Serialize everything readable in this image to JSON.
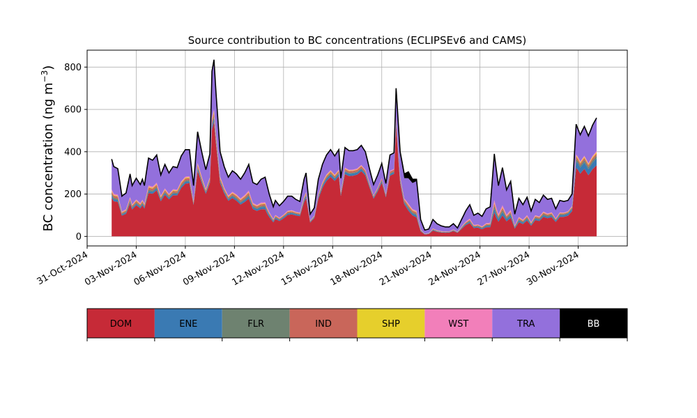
{
  "chart_data": {
    "type": "area",
    "title": "Source contribution to BC concentrations (ECLIPSEv6 and CAMS)",
    "ylabel_main": "BC concentration (ng m",
    "ylabel_sup": "−3",
    "ylabel_end": ")",
    "xlabel": "",
    "ylim": [
      -45,
      880
    ],
    "yticks": [
      0,
      200,
      400,
      600,
      800
    ],
    "xlim": [
      "2024-10-31",
      "2024-12-03"
    ],
    "xticks": [
      "31-Oct-2024",
      "03-Nov-2024",
      "06-Nov-2024",
      "09-Nov-2024",
      "12-Nov-2024",
      "15-Nov-2024",
      "18-Nov-2024",
      "21-Nov-2024",
      "24-Nov-2024",
      "27-Nov-2024",
      "30-Nov-2024"
    ],
    "grid": true,
    "stacked": true,
    "x_start": "2024-11-01 12:00",
    "x_step_hours": 3,
    "series": [
      {
        "name": "DOM",
        "color": "#c62a37"
      },
      {
        "name": "ENE",
        "color": "#3a7ab3"
      },
      {
        "name": "FLR",
        "color": "#6e8270"
      },
      {
        "name": "IND",
        "color": "#c9665a"
      },
      {
        "name": "SHP",
        "color": "#e6cf2c"
      },
      {
        "name": "WST",
        "color": "#f27fba"
      },
      {
        "name": "TRA",
        "color": "#9370dc"
      },
      {
        "name": "BB",
        "color": "#000000"
      }
    ],
    "total_keyframes": [
      [
        "2024-11-01 12:00",
        365
      ],
      [
        "2024-11-01 15:00",
        330
      ],
      [
        "2024-11-01 21:00",
        320
      ],
      [
        "2024-11-02 03:00",
        190
      ],
      [
        "2024-11-02 09:00",
        205
      ],
      [
        "2024-11-02 15:00",
        295
      ],
      [
        "2024-11-02 18:00",
        240
      ],
      [
        "2024-11-03 00:00",
        275
      ],
      [
        "2024-11-03 06:00",
        245
      ],
      [
        "2024-11-03 09:00",
        270
      ],
      [
        "2024-11-03 12:00",
        240
      ],
      [
        "2024-11-03 18:00",
        370
      ],
      [
        "2024-11-04 00:00",
        360
      ],
      [
        "2024-11-04 06:00",
        385
      ],
      [
        "2024-11-04 12:00",
        290
      ],
      [
        "2024-11-04 18:00",
        340
      ],
      [
        "2024-11-05 00:00",
        300
      ],
      [
        "2024-11-05 06:00",
        330
      ],
      [
        "2024-11-05 12:00",
        325
      ],
      [
        "2024-11-05 18:00",
        380
      ],
      [
        "2024-11-06 00:00",
        410
      ],
      [
        "2024-11-06 06:00",
        410
      ],
      [
        "2024-11-06 12:00",
        240
      ],
      [
        "2024-11-06 18:00",
        495
      ],
      [
        "2024-11-07 00:00",
        400
      ],
      [
        "2024-11-07 06:00",
        315
      ],
      [
        "2024-11-07 12:00",
        390
      ],
      [
        "2024-11-07 15:00",
        780
      ],
      [
        "2024-11-07 18:00",
        835
      ],
      [
        "2024-11-07 21:00",
        680
      ],
      [
        "2024-11-08 03:00",
        400
      ],
      [
        "2024-11-08 09:00",
        330
      ],
      [
        "2024-11-08 15:00",
        280
      ],
      [
        "2024-11-08 21:00",
        310
      ],
      [
        "2024-11-09 03:00",
        295
      ],
      [
        "2024-11-09 09:00",
        270
      ],
      [
        "2024-11-09 15:00",
        300
      ],
      [
        "2024-11-09 21:00",
        340
      ],
      [
        "2024-11-10 03:00",
        255
      ],
      [
        "2024-11-10 09:00",
        245
      ],
      [
        "2024-11-10 15:00",
        270
      ],
      [
        "2024-11-10 21:00",
        280
      ],
      [
        "2024-11-11 03:00",
        200
      ],
      [
        "2024-11-11 09:00",
        140
      ],
      [
        "2024-11-11 12:00",
        170
      ],
      [
        "2024-11-11 18:00",
        145
      ],
      [
        "2024-11-12 00:00",
        165
      ],
      [
        "2024-11-12 06:00",
        190
      ],
      [
        "2024-11-12 12:00",
        190
      ],
      [
        "2024-11-12 18:00",
        175
      ],
      [
        "2024-11-13 00:00",
        165
      ],
      [
        "2024-11-13 06:00",
        270
      ],
      [
        "2024-11-13 09:00",
        300
      ],
      [
        "2024-11-13 15:00",
        105
      ],
      [
        "2024-11-13 21:00",
        135
      ],
      [
        "2024-11-14 03:00",
        270
      ],
      [
        "2024-11-14 09:00",
        340
      ],
      [
        "2024-11-14 15:00",
        385
      ],
      [
        "2024-11-14 21:00",
        410
      ],
      [
        "2024-11-15 03:00",
        380
      ],
      [
        "2024-11-15 09:00",
        410
      ],
      [
        "2024-11-15 12:00",
        275
      ],
      [
        "2024-11-15 18:00",
        420
      ],
      [
        "2024-11-16 00:00",
        405
      ],
      [
        "2024-11-16 06:00",
        405
      ],
      [
        "2024-11-16 12:00",
        410
      ],
      [
        "2024-11-16 18:00",
        430
      ],
      [
        "2024-11-17 00:00",
        400
      ],
      [
        "2024-11-17 06:00",
        320
      ],
      [
        "2024-11-17 12:00",
        245
      ],
      [
        "2024-11-17 18:00",
        290
      ],
      [
        "2024-11-18 00:00",
        345
      ],
      [
        "2024-11-18 06:00",
        250
      ],
      [
        "2024-11-18 12:00",
        385
      ],
      [
        "2024-11-18 18:00",
        395
      ],
      [
        "2024-11-18 21:00",
        700
      ],
      [
        "2024-11-19 03:00",
        400
      ],
      [
        "2024-11-19 09:00",
        295
      ],
      [
        "2024-11-19 15:00",
        305
      ],
      [
        "2024-11-19 21:00",
        270
      ],
      [
        "2024-11-20 03:00",
        270
      ],
      [
        "2024-11-20 09:00",
        80
      ],
      [
        "2024-11-20 15:00",
        30
      ],
      [
        "2024-11-20 21:00",
        35
      ],
      [
        "2024-11-21 03:00",
        80
      ],
      [
        "2024-11-21 09:00",
        60
      ],
      [
        "2024-11-21 15:00",
        50
      ],
      [
        "2024-11-21 21:00",
        45
      ],
      [
        "2024-11-22 03:00",
        45
      ],
      [
        "2024-11-22 09:00",
        60
      ],
      [
        "2024-11-22 15:00",
        40
      ],
      [
        "2024-11-22 21:00",
        80
      ],
      [
        "2024-11-23 03:00",
        120
      ],
      [
        "2024-11-23 09:00",
        150
      ],
      [
        "2024-11-23 15:00",
        100
      ],
      [
        "2024-11-23 21:00",
        110
      ],
      [
        "2024-11-24 03:00",
        95
      ],
      [
        "2024-11-24 09:00",
        130
      ],
      [
        "2024-11-24 15:00",
        140
      ],
      [
        "2024-11-24 21:00",
        390
      ],
      [
        "2024-11-25 03:00",
        240
      ],
      [
        "2024-11-25 09:00",
        325
      ],
      [
        "2024-11-25 15:00",
        220
      ],
      [
        "2024-11-25 21:00",
        260
      ],
      [
        "2024-11-26 03:00",
        105
      ],
      [
        "2024-11-26 09:00",
        180
      ],
      [
        "2024-11-26 15:00",
        150
      ],
      [
        "2024-11-26 21:00",
        185
      ],
      [
        "2024-11-27 03:00",
        120
      ],
      [
        "2024-11-27 09:00",
        175
      ],
      [
        "2024-11-27 15:00",
        160
      ],
      [
        "2024-11-27 21:00",
        195
      ],
      [
        "2024-11-28 03:00",
        175
      ],
      [
        "2024-11-28 09:00",
        180
      ],
      [
        "2024-11-28 15:00",
        130
      ],
      [
        "2024-11-28 21:00",
        170
      ],
      [
        "2024-11-29 03:00",
        165
      ],
      [
        "2024-11-29 09:00",
        170
      ],
      [
        "2024-11-29 15:00",
        200
      ],
      [
        "2024-11-29 21:00",
        530
      ],
      [
        "2024-11-30 03:00",
        480
      ],
      [
        "2024-11-30 09:00",
        520
      ],
      [
        "2024-11-30 15:00",
        475
      ],
      [
        "2024-11-30 21:00",
        525
      ],
      [
        "2024-12-01 03:00",
        560
      ]
    ],
    "fraction_keyframes": [
      [
        "2024-11-01 12:00",
        [
          0.5,
          0.03,
          0.02,
          0.03,
          0.01,
          0.02,
          0.39,
          0.0
        ]
      ],
      [
        "2024-11-07 18:00",
        [
          0.65,
          0.02,
          0.01,
          0.02,
          0.01,
          0.01,
          0.28,
          0.0
        ]
      ],
      [
        "2024-11-09 12:00",
        [
          0.55,
          0.03,
          0.02,
          0.03,
          0.01,
          0.02,
          0.34,
          0.0
        ]
      ],
      [
        "2024-11-11 00:00",
        [
          0.45,
          0.04,
          0.02,
          0.03,
          0.01,
          0.02,
          0.43,
          0.0
        ]
      ],
      [
        "2024-11-14 12:00",
        [
          0.68,
          0.03,
          0.01,
          0.02,
          0.01,
          0.01,
          0.24,
          0.0
        ]
      ],
      [
        "2024-11-18 21:00",
        [
          0.75,
          0.02,
          0.01,
          0.02,
          0.0,
          0.01,
          0.19,
          0.0
        ]
      ],
      [
        "2024-11-19 15:00",
        [
          0.4,
          0.03,
          0.02,
          0.03,
          0.01,
          0.02,
          0.39,
          0.1
        ]
      ],
      [
        "2024-11-20 09:00",
        [
          0.3,
          0.04,
          0.02,
          0.03,
          0.01,
          0.02,
          0.58,
          0.0
        ]
      ],
      [
        "2024-11-23 00:00",
        [
          0.45,
          0.04,
          0.03,
          0.03,
          0.01,
          0.03,
          0.41,
          0.0
        ]
      ],
      [
        "2024-11-25 00:00",
        [
          0.28,
          0.05,
          0.03,
          0.03,
          0.01,
          0.03,
          0.57,
          0.0
        ]
      ],
      [
        "2024-11-28 00:00",
        [
          0.48,
          0.04,
          0.03,
          0.03,
          0.01,
          0.02,
          0.39,
          0.0
        ]
      ],
      [
        "2024-11-30 00:00",
        [
          0.62,
          0.06,
          0.02,
          0.02,
          0.01,
          0.01,
          0.26,
          0.0
        ]
      ],
      [
        "2024-12-01 03:00",
        [
          0.6,
          0.06,
          0.02,
          0.02,
          0.01,
          0.01,
          0.28,
          0.0
        ]
      ]
    ]
  }
}
